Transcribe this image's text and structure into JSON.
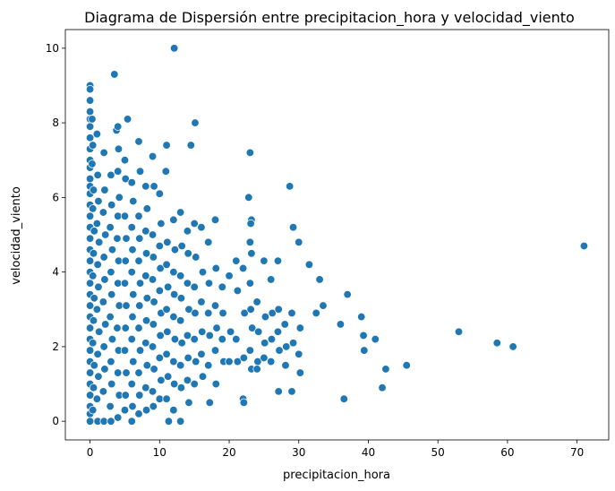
{
  "chart_data": {
    "type": "scatter",
    "title": "Diagrama de Dispersión entre precipitacion_hora y velocidad_viento",
    "xlabel": "precipitacion_hora",
    "ylabel": "velocidad_viento",
    "xlim": [
      -3.55,
      74.55
    ],
    "ylim": [
      -0.5,
      10.5
    ],
    "xticks": [
      0,
      10,
      20,
      30,
      40,
      50,
      60,
      70
    ],
    "yticks": [
      0,
      2,
      4,
      6,
      8,
      10
    ],
    "grid": false,
    "marker_color": "#1f77b4",
    "points": [
      [
        0.0,
        9.0
      ],
      [
        0.0,
        8.9
      ],
      [
        0.0,
        8.6
      ],
      [
        0.0,
        8.3
      ],
      [
        0.0,
        8.1
      ],
      [
        0.0,
        7.9
      ],
      [
        0.0,
        7.6
      ],
      [
        0.0,
        7.3
      ],
      [
        0.0,
        7.0
      ],
      [
        0.0,
        6.8
      ],
      [
        0.0,
        6.5
      ],
      [
        0.0,
        6.3
      ],
      [
        0.0,
        6.1
      ],
      [
        0.0,
        5.8
      ],
      [
        0.0,
        5.5
      ],
      [
        0.0,
        5.2
      ],
      [
        0.0,
        4.9
      ],
      [
        0.0,
        4.6
      ],
      [
        0.0,
        4.3
      ],
      [
        0.0,
        4.0
      ],
      [
        0.0,
        3.7
      ],
      [
        0.0,
        3.4
      ],
      [
        0.0,
        3.1
      ],
      [
        0.0,
        2.8
      ],
      [
        0.0,
        2.5
      ],
      [
        0.0,
        2.2
      ],
      [
        0.0,
        1.9
      ],
      [
        0.0,
        1.6
      ],
      [
        0.0,
        1.3
      ],
      [
        0.0,
        1.0
      ],
      [
        0.0,
        0.7
      ],
      [
        0.0,
        0.4
      ],
      [
        0.0,
        0.2
      ],
      [
        0.0,
        0.0
      ],
      [
        0.3,
        8.1
      ],
      [
        0.4,
        7.4
      ],
      [
        0.3,
        6.9
      ],
      [
        0.5,
        6.2
      ],
      [
        0.4,
        5.7
      ],
      [
        0.6,
        5.1
      ],
      [
        0.5,
        4.5
      ],
      [
        0.4,
        3.9
      ],
      [
        0.6,
        3.3
      ],
      [
        0.5,
        2.7
      ],
      [
        0.4,
        2.1
      ],
      [
        0.6,
        1.5
      ],
      [
        0.5,
        0.9
      ],
      [
        0.4,
        0.3
      ],
      [
        1.0,
        7.7
      ],
      [
        1.1,
        6.6
      ],
      [
        1.2,
        5.9
      ],
      [
        1.0,
        5.3
      ],
      [
        1.3,
        4.8
      ],
      [
        1.1,
        4.2
      ],
      [
        1.2,
        3.6
      ],
      [
        1.0,
        3.0
      ],
      [
        1.3,
        2.4
      ],
      [
        1.1,
        1.8
      ],
      [
        1.2,
        1.2
      ],
      [
        1.0,
        0.6
      ],
      [
        1.1,
        0.0
      ],
      [
        2.0,
        7.2
      ],
      [
        2.1,
        6.2
      ],
      [
        1.9,
        5.6
      ],
      [
        2.2,
        5.0
      ],
      [
        2.0,
        4.4
      ],
      [
        2.1,
        3.8
      ],
      [
        1.9,
        3.2
      ],
      [
        2.2,
        2.6
      ],
      [
        2.0,
        2.0
      ],
      [
        2.1,
        1.4
      ],
      [
        1.9,
        0.8
      ],
      [
        2.0,
        0.0
      ],
      [
        3.0,
        6.6
      ],
      [
        3.1,
        5.8
      ],
      [
        2.9,
        5.2
      ],
      [
        3.2,
        4.6
      ],
      [
        3.0,
        4.0
      ],
      [
        3.1,
        3.4
      ],
      [
        2.9,
        2.8
      ],
      [
        3.2,
        2.2
      ],
      [
        3.0,
        1.6
      ],
      [
        3.1,
        1.0
      ],
      [
        2.9,
        0.4
      ],
      [
        3.0,
        0.0
      ],
      [
        3.5,
        9.3
      ],
      [
        3.8,
        7.8
      ],
      [
        4.0,
        7.9
      ],
      [
        4.1,
        7.3
      ],
      [
        4.0,
        6.7
      ],
      [
        4.2,
        6.0
      ],
      [
        4.0,
        5.5
      ],
      [
        3.9,
        4.9
      ],
      [
        4.1,
        4.3
      ],
      [
        4.0,
        3.7
      ],
      [
        4.2,
        3.1
      ],
      [
        3.9,
        2.5
      ],
      [
        4.1,
        1.9
      ],
      [
        4.0,
        1.3
      ],
      [
        4.2,
        0.7
      ],
      [
        4.0,
        0.1
      ],
      [
        5.0,
        7.0
      ],
      [
        5.4,
        8.1
      ],
      [
        5.1,
        6.5
      ],
      [
        5.0,
        5.5
      ],
      [
        5.2,
        4.9
      ],
      [
        5.1,
        4.3
      ],
      [
        5.0,
        3.7
      ],
      [
        5.2,
        3.1
      ],
      [
        5.1,
        2.5
      ],
      [
        5.0,
        1.9
      ],
      [
        5.2,
        1.3
      ],
      [
        5.1,
        0.7
      ],
      [
        5.0,
        0.3
      ],
      [
        6.0,
        6.4
      ],
      [
        6.2,
        5.9
      ],
      [
        6.0,
        5.2
      ],
      [
        6.1,
        4.6
      ],
      [
        6.0,
        4.0
      ],
      [
        6.2,
        3.4
      ],
      [
        6.1,
        2.8
      ],
      [
        6.0,
        2.2
      ],
      [
        6.2,
        1.6
      ],
      [
        6.0,
        1.0
      ],
      [
        6.1,
        0.4
      ],
      [
        6.0,
        0.0
      ],
      [
        7.0,
        7.5
      ],
      [
        7.2,
        6.7
      ],
      [
        7.0,
        5.5
      ],
      [
        7.1,
        4.9
      ],
      [
        7.0,
        4.3
      ],
      [
        7.2,
        3.7
      ],
      [
        7.1,
        3.1
      ],
      [
        7.0,
        2.5
      ],
      [
        7.2,
        1.9
      ],
      [
        7.0,
        1.3
      ],
      [
        7.1,
        0.7
      ],
      [
        7.0,
        0.2
      ],
      [
        8.0,
        6.3
      ],
      [
        8.2,
        5.7
      ],
      [
        8.0,
        5.1
      ],
      [
        8.1,
        4.5
      ],
      [
        8.0,
        3.9
      ],
      [
        8.2,
        3.3
      ],
      [
        8.1,
        2.7
      ],
      [
        8.0,
        2.1
      ],
      [
        8.2,
        1.5
      ],
      [
        8.0,
        0.9
      ],
      [
        8.1,
        0.3
      ],
      [
        9.0,
        7.1
      ],
      [
        9.2,
        6.3
      ],
      [
        9.0,
        5.0
      ],
      [
        9.1,
        4.4
      ],
      [
        9.0,
        3.8
      ],
      [
        9.2,
        3.2
      ],
      [
        9.1,
        2.6
      ],
      [
        9.0,
        2.0
      ],
      [
        9.2,
        1.4
      ],
      [
        9.0,
        0.8
      ],
      [
        9.1,
        0.4
      ],
      [
        10.0,
        6.1
      ],
      [
        10.2,
        5.3
      ],
      [
        10.0,
        4.7
      ],
      [
        10.1,
        4.1
      ],
      [
        10.0,
        3.5
      ],
      [
        10.2,
        2.9
      ],
      [
        10.1,
        2.3
      ],
      [
        10.0,
        1.7
      ],
      [
        10.2,
        1.1
      ],
      [
        10.0,
        0.6
      ],
      [
        11.0,
        7.4
      ],
      [
        10.9,
        6.7
      ],
      [
        11.1,
        4.8
      ],
      [
        11.0,
        4.2
      ],
      [
        11.2,
        3.6
      ],
      [
        11.0,
        3.0
      ],
      [
        11.1,
        2.4
      ],
      [
        11.0,
        1.8
      ],
      [
        11.2,
        1.2
      ],
      [
        11.0,
        0.6
      ],
      [
        11.3,
        0.0
      ],
      [
        12.1,
        10.0
      ],
      [
        12.0,
        5.4
      ],
      [
        12.2,
        4.6
      ],
      [
        12.0,
        4.0
      ],
      [
        12.1,
        3.4
      ],
      [
        12.0,
        2.8
      ],
      [
        12.2,
        2.2
      ],
      [
        12.0,
        1.6
      ],
      [
        12.1,
        1.0
      ],
      [
        12.0,
        0.3
      ],
      [
        13.0,
        5.6
      ],
      [
        13.2,
        4.7
      ],
      [
        13.0,
        3.9
      ],
      [
        13.1,
        3.3
      ],
      [
        13.0,
        2.7
      ],
      [
        13.2,
        2.1
      ],
      [
        13.0,
        1.5
      ],
      [
        13.1,
        0.9
      ],
      [
        13.0,
        0.0
      ],
      [
        14.0,
        5.1
      ],
      [
        14.1,
        4.5
      ],
      [
        14.0,
        3.7
      ],
      [
        14.2,
        3.0
      ],
      [
        14.0,
        2.3
      ],
      [
        14.1,
        1.7
      ],
      [
        14.0,
        1.1
      ],
      [
        14.2,
        0.5
      ],
      [
        14.5,
        7.4
      ],
      [
        15.1,
        8.0
      ],
      [
        15.0,
        5.3
      ],
      [
        15.2,
        4.4
      ],
      [
        15.0,
        3.6
      ],
      [
        15.1,
        2.9
      ],
      [
        15.0,
        2.2
      ],
      [
        15.2,
        1.6
      ],
      [
        15.0,
        1.0
      ],
      [
        16.0,
        5.2
      ],
      [
        16.2,
        4.0
      ],
      [
        16.0,
        3.2
      ],
      [
        16.1,
        2.4
      ],
      [
        16.0,
        1.8
      ],
      [
        16.2,
        1.2
      ],
      [
        17.0,
        4.8
      ],
      [
        17.1,
        3.7
      ],
      [
        17.0,
        2.9
      ],
      [
        17.2,
        2.3
      ],
      [
        17.0,
        1.5
      ],
      [
        17.2,
        0.5
      ],
      [
        18.0,
        5.4
      ],
      [
        18.1,
        4.1
      ],
      [
        18.0,
        3.1
      ],
      [
        18.2,
        2.5
      ],
      [
        18.0,
        1.9
      ],
      [
        18.1,
        1.0
      ],
      [
        19.0,
        3.6
      ],
      [
        19.1,
        2.9
      ],
      [
        19.0,
        2.2
      ],
      [
        19.2,
        1.6
      ],
      [
        20.0,
        3.9
      ],
      [
        20.2,
        2.4
      ],
      [
        20.0,
        1.6
      ],
      [
        21.0,
        4.3
      ],
      [
        21.2,
        3.5
      ],
      [
        21.0,
        2.2
      ],
      [
        21.2,
        1.6
      ],
      [
        22.0,
        4.1
      ],
      [
        22.2,
        2.9
      ],
      [
        22.1,
        1.7
      ],
      [
        22.0,
        0.6
      ],
      [
        22.1,
        0.5
      ],
      [
        22.8,
        6.0
      ],
      [
        23.0,
        7.2
      ],
      [
        23.2,
        5.4
      ],
      [
        23.1,
        5.3
      ],
      [
        23.0,
        4.8
      ],
      [
        23.2,
        4.5
      ],
      [
        23.0,
        3.7
      ],
      [
        23.1,
        3.0
      ],
      [
        23.3,
        2.5
      ],
      [
        23.0,
        1.9
      ],
      [
        23.2,
        1.4
      ],
      [
        24.0,
        3.2
      ],
      [
        24.2,
        2.4
      ],
      [
        24.1,
        1.6
      ],
      [
        24.0,
        1.4
      ],
      [
        25.0,
        4.3
      ],
      [
        25.2,
        2.8
      ],
      [
        25.1,
        2.1
      ],
      [
        25.0,
        1.7
      ],
      [
        26.0,
        3.8
      ],
      [
        26.2,
        2.9
      ],
      [
        26.1,
        2.2
      ],
      [
        26.0,
        1.6
      ],
      [
        27.0,
        4.3
      ],
      [
        27.1,
        3.0
      ],
      [
        27.0,
        2.4
      ],
      [
        27.2,
        1.9
      ],
      [
        27.1,
        0.8
      ],
      [
        28.0,
        2.6
      ],
      [
        28.2,
        2.0
      ],
      [
        28.1,
        1.5
      ],
      [
        28.7,
        6.3
      ],
      [
        29.2,
        5.2
      ],
      [
        29.0,
        2.9
      ],
      [
        29.2,
        2.1
      ],
      [
        29.0,
        0.8
      ],
      [
        30.0,
        4.8
      ],
      [
        30.2,
        2.5
      ],
      [
        30.0,
        1.8
      ],
      [
        30.2,
        1.3
      ],
      [
        31.5,
        4.2
      ],
      [
        32.5,
        2.9
      ],
      [
        33.0,
        3.8
      ],
      [
        33.5,
        3.1
      ],
      [
        36.0,
        2.6
      ],
      [
        36.5,
        0.6
      ],
      [
        37.0,
        3.4
      ],
      [
        39.0,
        2.8
      ],
      [
        39.3,
        2.3
      ],
      [
        39.4,
        1.9
      ],
      [
        41.0,
        2.2
      ],
      [
        42.0,
        0.9
      ],
      [
        42.5,
        1.4
      ],
      [
        45.5,
        1.5
      ],
      [
        53.0,
        2.4
      ],
      [
        58.5,
        2.1
      ],
      [
        60.8,
        2.0
      ],
      [
        71.0,
        4.7
      ]
    ]
  }
}
